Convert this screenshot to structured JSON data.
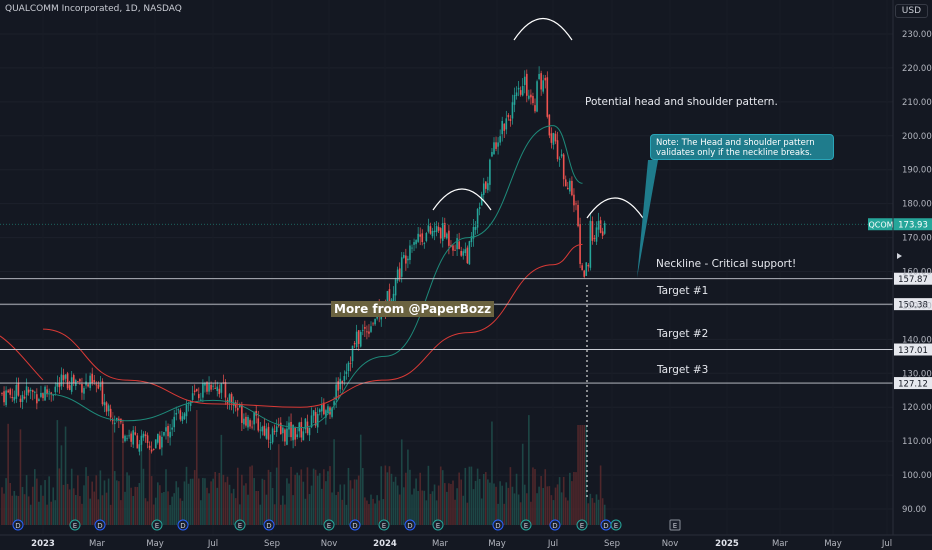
{
  "header": {
    "symbol_title": "QUALCOMM Incorporated, 1D, NASDAQ",
    "currency": "USD"
  },
  "annotations": {
    "pattern_label": "Potential head and shoulder pattern.",
    "note": "Note: The Head and shoulder pattern validates only if the neckline breaks.",
    "neckline_label": "Neckline - Critical support!",
    "target1": "Target #1",
    "target2": "Target #2",
    "target3": "Target #3",
    "watermark": "More from @PaperBozz"
  },
  "colors": {
    "background": "#141822",
    "up_candle": "#26a69a",
    "down_candle": "#ef5350",
    "ma_short": "#1e8a7a",
    "ma_long": "#d93a36",
    "note_box": "#1f7c8c",
    "price_tag": "#26a69a"
  },
  "chart_data": {
    "type": "candlestick",
    "title": "QUALCOMM Incorporated, 1D, NASDAQ",
    "symbol": "QCOM",
    "last_price": 173.93,
    "ylim": [
      85,
      236
    ],
    "y_ticks": [
      "230.00",
      "220.00",
      "210.00",
      "200.00",
      "190.00",
      "180.00",
      "170.00",
      "160.00",
      "150.00",
      "140.00",
      "130.00",
      "120.00",
      "110.00",
      "100.00",
      "90.00"
    ],
    "x_ticks": [
      "2023",
      "Mar",
      "May",
      "Jul",
      "Sep",
      "Nov",
      "2024",
      "Mar",
      "May",
      "Jul",
      "Sep",
      "Nov",
      "2025",
      "Mar",
      "May",
      "Jul"
    ],
    "horizontal_levels": [
      {
        "name": "Neckline",
        "value": 157.87,
        "label": "157.87"
      },
      {
        "name": "Target #1",
        "value": 150.38,
        "label": "150.38"
      },
      {
        "name": "Target #2",
        "value": 137.01,
        "label": "137.01"
      },
      {
        "name": "Target #3",
        "value": 127.12,
        "label": "127.12"
      }
    ],
    "price_tag": {
      "symbol": "QCOM",
      "value": 173.93,
      "label": "173.93"
    },
    "series": [
      {
        "kind": "close_path",
        "x": [
          "2023-01",
          "2023-02",
          "2023-03",
          "2023-04",
          "2023-05",
          "2023-06",
          "2023-07",
          "2023-08",
          "2023-09",
          "2023-10",
          "2023-11",
          "2023-12",
          "2024-01",
          "2024-02",
          "2024-03",
          "2024-04",
          "2024-05",
          "2024-06",
          "2024-07",
          "2024-08"
        ],
        "values": [
          124,
          128,
          126,
          112,
          108,
          120,
          128,
          118,
          112,
          113,
          120,
          140,
          150,
          170,
          172,
          165,
          200,
          215,
          200,
          172
        ]
      },
      {
        "kind": "moving_average_short",
        "x": [
          "2023-01",
          "2023-04",
          "2023-07",
          "2023-10",
          "2024-01",
          "2024-04",
          "2024-07",
          "2024-08"
        ],
        "values": [
          124,
          116,
          122,
          114,
          135,
          170,
          203,
          186
        ]
      },
      {
        "kind": "moving_average_long",
        "x": [
          "2023-01",
          "2023-04",
          "2023-07",
          "2023-10",
          "2024-01",
          "2024-04",
          "2024-07",
          "2024-08"
        ],
        "values": [
          143,
          128,
          121,
          120,
          128,
          142,
          162,
          168
        ]
      }
    ],
    "event_markers": [
      "D",
      "E",
      "D",
      "E",
      "D",
      "E",
      "D",
      "E",
      "D",
      "E",
      "D",
      "E",
      "D",
      "E",
      "D",
      "E",
      "D",
      "E"
    ],
    "future_marker": "E"
  }
}
